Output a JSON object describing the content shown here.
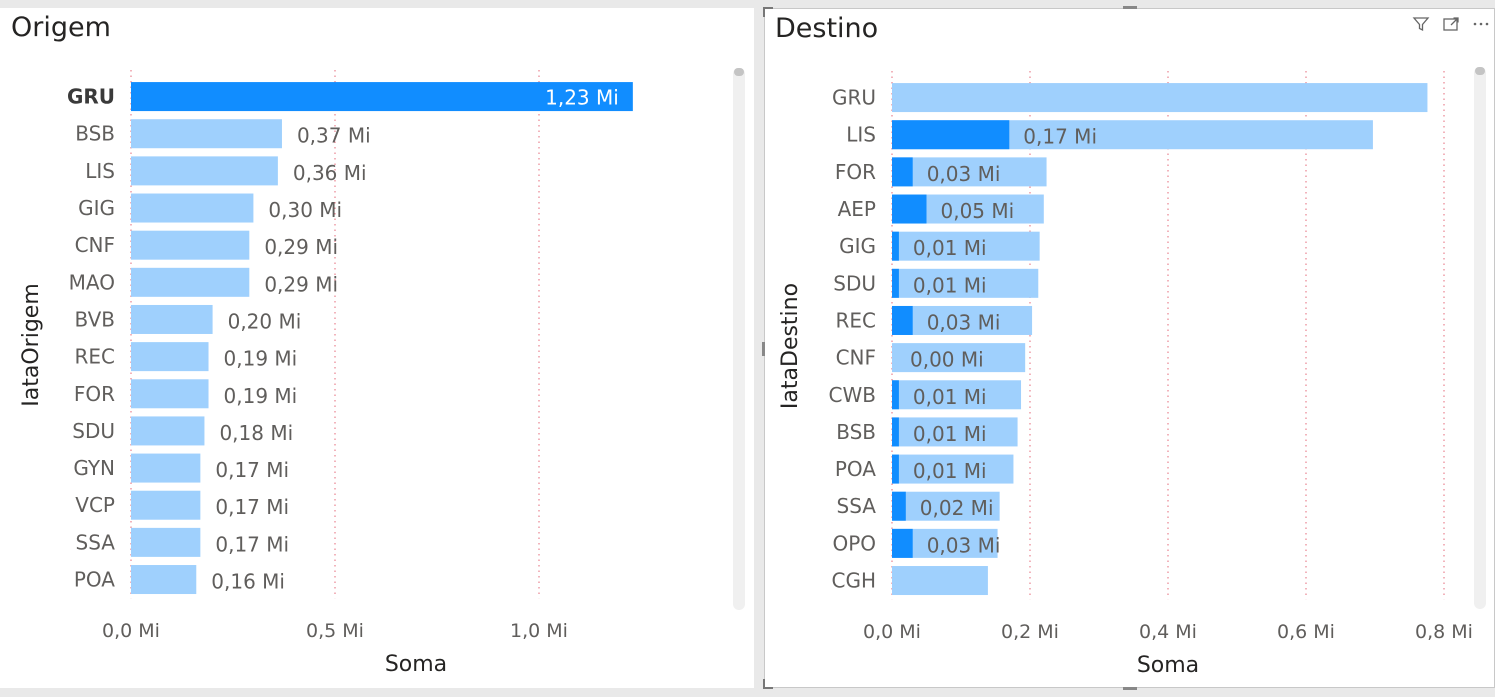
{
  "left_visual": {
    "title": "Origem"
  },
  "right_visual": {
    "title": "Destino",
    "icons": [
      "filter-icon",
      "focus-mode-icon",
      "more-options-icon"
    ]
  },
  "colors": {
    "highlight": "#118dff",
    "base": "#9fd0fd",
    "gridline": "#e8838f",
    "label": "#605e5c",
    "axis_title": "#252423"
  },
  "chart_data": [
    {
      "type": "bar",
      "orientation": "horizontal",
      "title": "Origem",
      "xlabel": "Soma",
      "ylabel": "IataOrigem",
      "xlim": [
        0,
        1.5
      ],
      "xticks": [
        "0,0 Mi",
        "0,5 Mi",
        "1,0 Mi"
      ],
      "xtick_values": [
        0,
        0.5,
        1.0
      ],
      "grid": true,
      "categories": [
        "GRU",
        "BSB",
        "LIS",
        "GIG",
        "CNF",
        "MAO",
        "BVB",
        "REC",
        "FOR",
        "SDU",
        "GYN",
        "VCP",
        "SSA",
        "POA"
      ],
      "series": [
        {
          "values": [
            1.23,
            0.37,
            0.36,
            0.3,
            0.29,
            0.29,
            0.2,
            0.19,
            0.19,
            0.18,
            0.17,
            0.17,
            0.17,
            0.16
          ],
          "labels": [
            "1,23 Mi",
            "0,37 Mi",
            "0,36 Mi",
            "0,30 Mi",
            "0,29 Mi",
            "0,29 Mi",
            "0,20 Mi",
            "0,19 Mi",
            "0,19 Mi",
            "0,18 Mi",
            "0,17 Mi",
            "0,17 Mi",
            "0,17 Mi",
            "0,16 Mi"
          ]
        }
      ],
      "highlighted_category": "GRU"
    },
    {
      "type": "bar",
      "orientation": "horizontal",
      "title": "Destino",
      "xlabel": "Soma",
      "ylabel": "IataDestino",
      "xlim": [
        0,
        0.8
      ],
      "xticks": [
        "0,0 Mi",
        "0,2 Mi",
        "0,4 Mi",
        "0,6 Mi",
        "0,8 Mi"
      ],
      "xtick_values": [
        0,
        0.2,
        0.4,
        0.6,
        0.8
      ],
      "grid": true,
      "categories": [
        "GRU",
        "LIS",
        "FOR",
        "AEP",
        "GIG",
        "SDU",
        "REC",
        "CNF",
        "CWB",
        "BSB",
        "POA",
        "SSA",
        "OPO",
        "CGH"
      ],
      "series": [
        {
          "values": [
            0.776,
            0.697,
            0.224,
            0.22,
            0.214,
            0.212,
            0.203,
            0.193,
            0.187,
            0.182,
            0.176,
            0.156,
            0.153,
            0.139
          ]
        },
        {
          "values": [
            0.0,
            0.17,
            0.03,
            0.05,
            0.01,
            0.01,
            0.03,
            0.0,
            0.01,
            0.01,
            0.01,
            0.02,
            0.03,
            0.0
          ],
          "labels": [
            "",
            "0,17 Mi",
            "0,03 Mi",
            "0,05 Mi",
            "0,01 Mi",
            "0,01 Mi",
            "0,03 Mi",
            "0,00 Mi",
            "0,01 Mi",
            "0,01 Mi",
            "0,01 Mi",
            "0,02 Mi",
            "0,03 Mi",
            ""
          ]
        }
      ]
    }
  ]
}
